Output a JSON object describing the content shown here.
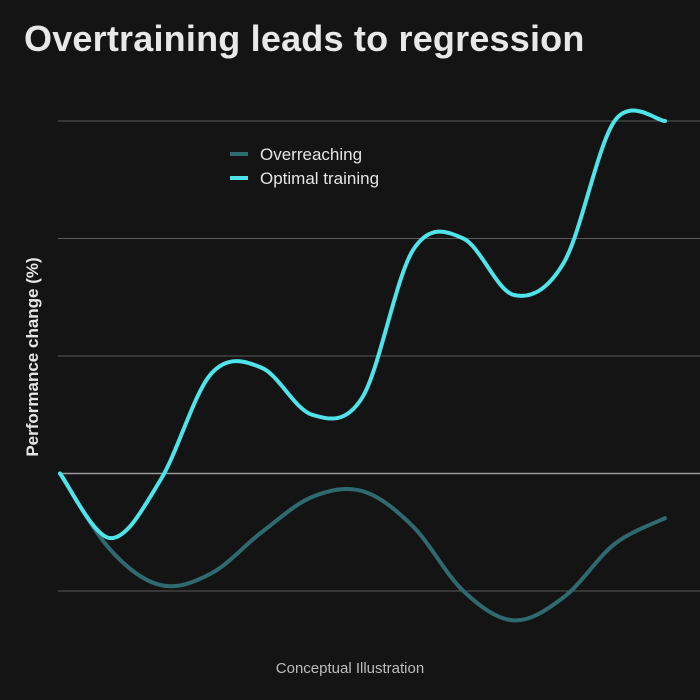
{
  "chart_data": {
    "type": "line",
    "title": "Overtraining leads to regression",
    "xlabel": "",
    "ylabel": "Performance change (%)",
    "caption": "Conceptual Illustration",
    "x": [
      0,
      1,
      2,
      3,
      4,
      5,
      6,
      7,
      8,
      9,
      10,
      11,
      12
    ],
    "ylim": [
      -1,
      3
    ],
    "yticks": [
      -1,
      0,
      1,
      2,
      3
    ],
    "grid": true,
    "legend_position": "top-center",
    "series": [
      {
        "name": "Overreaching",
        "color": "#2e6a70",
        "values": [
          0,
          -0.65,
          -0.95,
          -0.85,
          -0.5,
          -0.2,
          -0.15,
          -0.45,
          -1.0,
          -1.25,
          -1.05,
          -0.6,
          -0.38
        ]
      },
      {
        "name": "Optimal training",
        "color": "#4fe3ea",
        "values": [
          0,
          -0.55,
          -0.05,
          0.85,
          0.9,
          0.5,
          0.65,
          1.9,
          2.0,
          1.52,
          1.8,
          3.0,
          3.0
        ]
      }
    ],
    "series_values_note": "",
    "colors": {
      "background": "#141414",
      "grid": "#5a5a5a",
      "zero_line": "#9a9a9a",
      "text": "#e6e6e6"
    }
  }
}
